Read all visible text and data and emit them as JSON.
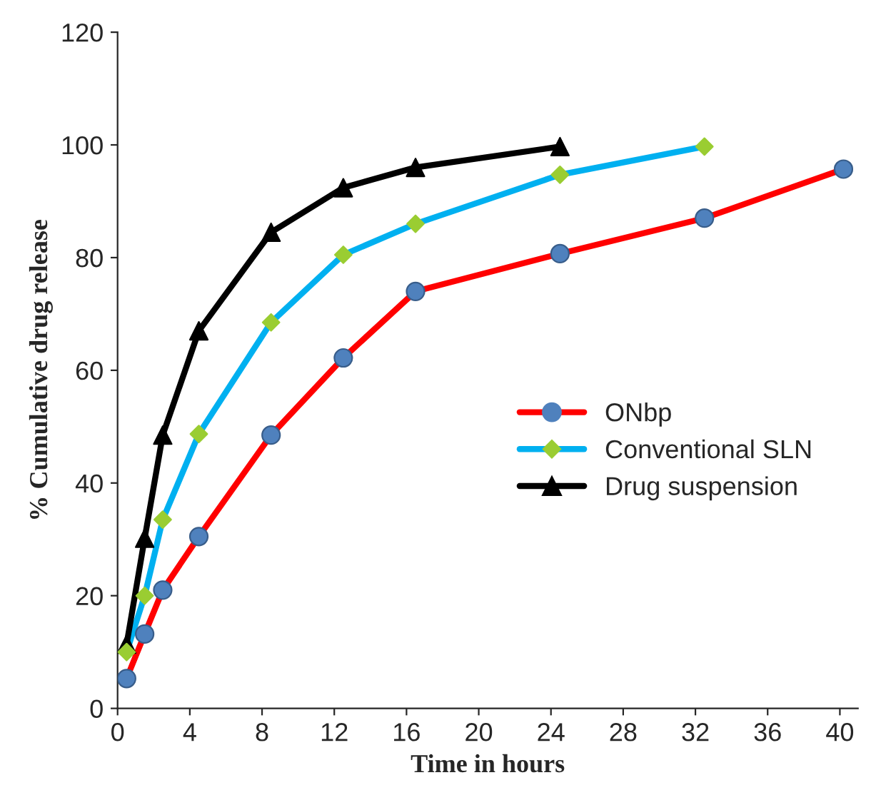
{
  "chart_data": {
    "type": "line",
    "xlabel": "Time in hours",
    "ylabel": "% Cumulative drug release",
    "xlim": [
      0,
      41
    ],
    "xticks": [
      0,
      4,
      8,
      12,
      16,
      20,
      24,
      28,
      32,
      36,
      40
    ],
    "ylim": [
      0,
      120
    ],
    "yticks": [
      0,
      20,
      40,
      60,
      80,
      100,
      120
    ],
    "grid": false,
    "legend": "right",
    "series": [
      {
        "name": "ONbp",
        "color": "#ff0000",
        "marker": "circle",
        "colors": [
          "#4f81bd",
          "#4f81bd",
          "#4f81bd",
          "#4f81bd",
          "#4f81bd",
          "#4f81bd",
          "#4f81bd",
          "#4f81bd",
          "#4f81bd",
          "#4f81bd"
        ],
        "x": [
          0.5,
          1.5,
          2.5,
          4.5,
          8.5,
          12.5,
          16.5,
          24.5,
          32.5,
          40.2
        ],
        "values": [
          5.3,
          13.2,
          21,
          30.5,
          48.5,
          62.2,
          74,
          80.7,
          87,
          95.7
        ]
      },
      {
        "name": "Conventional SLN",
        "color": "#00b0f0",
        "marker": "diamond",
        "colors": [
          "#9acd32",
          "#9acd32",
          "#9acd32",
          "#9acd32",
          "#9acd32",
          "#9acd32",
          "#9acd32",
          "#9acd32",
          "#9acd32"
        ],
        "x": [
          0.5,
          1.5,
          2.5,
          4.5,
          8.5,
          12.5,
          16.5,
          24.5,
          32.5
        ],
        "values": [
          10,
          20,
          33.5,
          48.7,
          68.5,
          80.5,
          86,
          94.7,
          99.7
        ]
      },
      {
        "name": "Drug suspension",
        "color": "#000000",
        "marker": "triangle",
        "colors": [
          "#000000",
          "#000000",
          "#000000",
          "#000000",
          "#000000",
          "#000000",
          "#000000",
          "#000000"
        ],
        "x": [
          0.5,
          1.5,
          2.5,
          4.5,
          8.5,
          12.5,
          16.5,
          24.5
        ],
        "values": [
          11.4,
          30.2,
          48.5,
          67,
          84.5,
          92.4,
          96,
          99.7
        ]
      }
    ]
  }
}
